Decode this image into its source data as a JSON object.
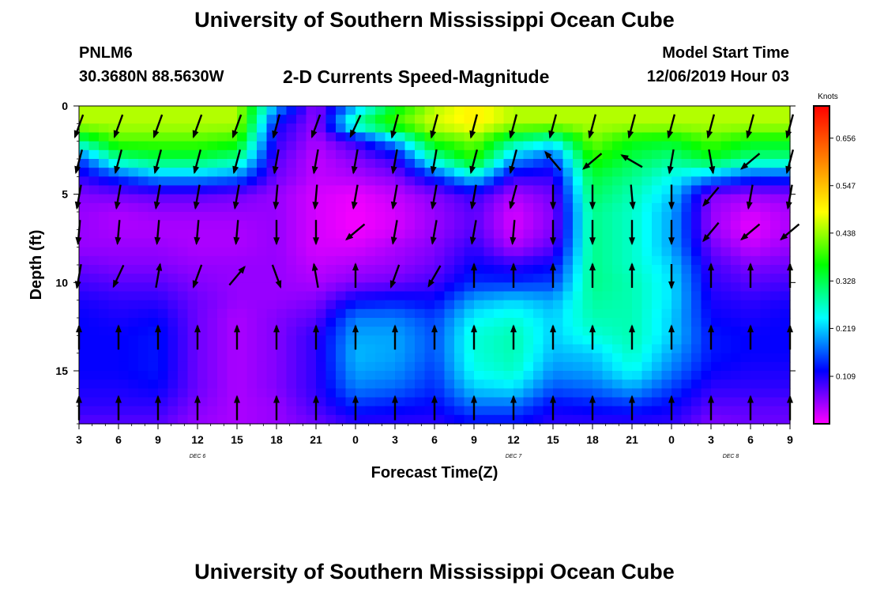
{
  "header": {
    "title": "University of Southern Mississippi Ocean Cube",
    "station_id": "PNLM6",
    "station_coords": "30.3680N 88.5630W",
    "subtitle": "2-D Currents Speed-Magnitude",
    "model_start_label": "Model Start Time",
    "model_start_value": "12/06/2019 Hour 03"
  },
  "footer": {
    "title": "University of Southern Mississippi Ocean Cube"
  },
  "chart_data": {
    "type": "heatmap",
    "xlabel": "Forecast Time(Z)",
    "ylabel": "Depth (ft)",
    "x_range": [
      0,
      54
    ],
    "y_range": [
      0,
      18
    ],
    "y_inverted": true,
    "x_ticks": [
      {
        "pos": 0,
        "label": "3"
      },
      {
        "pos": 3,
        "label": "6"
      },
      {
        "pos": 6,
        "label": "9"
      },
      {
        "pos": 9,
        "label": "12"
      },
      {
        "pos": 12,
        "label": "15"
      },
      {
        "pos": 15,
        "label": "18"
      },
      {
        "pos": 18,
        "label": "21"
      },
      {
        "pos": 21,
        "label": "0"
      },
      {
        "pos": 24,
        "label": "3"
      },
      {
        "pos": 27,
        "label": "6"
      },
      {
        "pos": 30,
        "label": "9"
      },
      {
        "pos": 33,
        "label": "12"
      },
      {
        "pos": 36,
        "label": "15"
      },
      {
        "pos": 39,
        "label": "18"
      },
      {
        "pos": 42,
        "label": "21"
      },
      {
        "pos": 45,
        "label": "0"
      },
      {
        "pos": 48,
        "label": "3"
      },
      {
        "pos": 51,
        "label": "6"
      },
      {
        "pos": 54,
        "label": "9"
      }
    ],
    "day_labels": [
      {
        "pos": 9,
        "label": "DEC 6"
      },
      {
        "pos": 33,
        "label": "DEC 7"
      },
      {
        "pos": 49.5,
        "label": "DEC 8"
      }
    ],
    "y_ticks": [
      {
        "pos": 0,
        "label": "0"
      },
      {
        "pos": 5,
        "label": "5"
      },
      {
        "pos": 10,
        "label": "10"
      },
      {
        "pos": 15,
        "label": "15"
      }
    ],
    "colorbar": {
      "title": "Knots",
      "range": [
        0,
        0.73
      ],
      "tick_values": [
        0.109,
        0.219,
        0.328,
        0.438,
        0.547,
        0.656
      ],
      "tick_labels": [
        "0.109",
        "0.219",
        "0.328",
        "0.438",
        "0.547",
        "0.656"
      ],
      "colors": [
        "#ff00ff",
        "#8000ff",
        "#0000ff",
        "#0080ff",
        "#00ffff",
        "#00ff80",
        "#00ff00",
        "#80ff00",
        "#ffff00",
        "#ffc000",
        "#ff8000",
        "#ff4000",
        "#ff0000"
      ]
    },
    "heatmap": {
      "x": [
        0,
        3,
        6,
        9,
        12,
        15,
        18,
        21,
        24,
        27,
        30,
        33,
        36,
        39,
        42,
        45,
        48,
        51,
        54
      ],
      "y": [
        0,
        1,
        2,
        3,
        4,
        5,
        6,
        7,
        8,
        9,
        10,
        11,
        12,
        13,
        14,
        15,
        16,
        17,
        18
      ],
      "values": [
        [
          0.45,
          0.45,
          0.45,
          0.45,
          0.45,
          0.2,
          0.05,
          0.2,
          0.35,
          0.45,
          0.5,
          0.45,
          0.45,
          0.45,
          0.45,
          0.45,
          0.45,
          0.45,
          0.45
        ],
        [
          0.45,
          0.45,
          0.45,
          0.45,
          0.45,
          0.12,
          0.05,
          0.3,
          0.4,
          0.47,
          0.5,
          0.45,
          0.45,
          0.45,
          0.45,
          0.45,
          0.45,
          0.45,
          0.45
        ],
        [
          0.3,
          0.4,
          0.4,
          0.4,
          0.38,
          0.1,
          0.04,
          0.1,
          0.2,
          0.38,
          0.42,
          0.3,
          0.25,
          0.42,
          0.36,
          0.35,
          0.4,
          0.36,
          0.36
        ],
        [
          0.15,
          0.3,
          0.33,
          0.33,
          0.3,
          0.08,
          0.03,
          0.06,
          0.1,
          0.28,
          0.38,
          0.2,
          0.15,
          0.38,
          0.33,
          0.3,
          0.35,
          0.3,
          0.3
        ],
        [
          0.1,
          0.15,
          0.2,
          0.2,
          0.18,
          0.07,
          0.03,
          0.04,
          0.06,
          0.14,
          0.24,
          0.1,
          0.1,
          0.34,
          0.3,
          0.25,
          0.2,
          0.15,
          0.15
        ],
        [
          0.06,
          0.07,
          0.08,
          0.08,
          0.07,
          0.05,
          0.02,
          0.01,
          0.03,
          0.06,
          0.1,
          0.04,
          0.07,
          0.32,
          0.28,
          0.22,
          0.06,
          0.05,
          0.06
        ],
        [
          0.05,
          0.04,
          0.05,
          0.05,
          0.05,
          0.05,
          0.02,
          0.005,
          0.02,
          0.05,
          0.08,
          0.02,
          0.06,
          0.3,
          0.27,
          0.2,
          0.05,
          0.02,
          0.04
        ],
        [
          0.05,
          0.04,
          0.04,
          0.04,
          0.04,
          0.05,
          0.02,
          0.005,
          0.02,
          0.05,
          0.08,
          0.02,
          0.06,
          0.3,
          0.27,
          0.2,
          0.05,
          0.01,
          0.04
        ],
        [
          0.05,
          0.05,
          0.05,
          0.04,
          0.04,
          0.05,
          0.02,
          0.02,
          0.04,
          0.06,
          0.1,
          0.04,
          0.08,
          0.3,
          0.27,
          0.2,
          0.07,
          0.03,
          0.05
        ],
        [
          0.07,
          0.06,
          0.06,
          0.05,
          0.05,
          0.05,
          0.03,
          0.04,
          0.05,
          0.07,
          0.12,
          0.1,
          0.12,
          0.3,
          0.27,
          0.22,
          0.09,
          0.06,
          0.07
        ],
        [
          0.09,
          0.08,
          0.08,
          0.06,
          0.05,
          0.05,
          0.04,
          0.06,
          0.07,
          0.09,
          0.14,
          0.14,
          0.15,
          0.3,
          0.28,
          0.23,
          0.1,
          0.08,
          0.09
        ],
        [
          0.11,
          0.1,
          0.1,
          0.07,
          0.05,
          0.05,
          0.06,
          0.12,
          0.13,
          0.12,
          0.2,
          0.22,
          0.2,
          0.29,
          0.28,
          0.23,
          0.11,
          0.1,
          0.11
        ],
        [
          0.12,
          0.11,
          0.12,
          0.07,
          0.04,
          0.06,
          0.08,
          0.18,
          0.18,
          0.15,
          0.24,
          0.26,
          0.22,
          0.28,
          0.28,
          0.22,
          0.12,
          0.11,
          0.12
        ],
        [
          0.12,
          0.12,
          0.13,
          0.07,
          0.04,
          0.06,
          0.1,
          0.2,
          0.2,
          0.16,
          0.26,
          0.28,
          0.22,
          0.26,
          0.28,
          0.22,
          0.13,
          0.12,
          0.12
        ],
        [
          0.12,
          0.12,
          0.13,
          0.07,
          0.04,
          0.06,
          0.1,
          0.21,
          0.2,
          0.16,
          0.26,
          0.28,
          0.21,
          0.22,
          0.27,
          0.2,
          0.13,
          0.12,
          0.12
        ],
        [
          0.12,
          0.12,
          0.13,
          0.07,
          0.04,
          0.06,
          0.1,
          0.2,
          0.19,
          0.15,
          0.25,
          0.27,
          0.19,
          0.2,
          0.25,
          0.18,
          0.12,
          0.11,
          0.11
        ],
        [
          0.11,
          0.11,
          0.12,
          0.07,
          0.04,
          0.06,
          0.1,
          0.18,
          0.17,
          0.14,
          0.22,
          0.23,
          0.16,
          0.17,
          0.2,
          0.15,
          0.1,
          0.1,
          0.1
        ],
        [
          0.1,
          0.1,
          0.1,
          0.06,
          0.04,
          0.05,
          0.09,
          0.14,
          0.13,
          0.12,
          0.17,
          0.17,
          0.12,
          0.13,
          0.14,
          0.12,
          0.08,
          0.08,
          0.08
        ],
        [
          0.08,
          0.08,
          0.08,
          0.05,
          0.04,
          0.05,
          0.07,
          0.1,
          0.1,
          0.1,
          0.12,
          0.12,
          0.1,
          0.1,
          0.1,
          0.1,
          0.06,
          0.07,
          0.07
        ]
      ]
    },
    "vectors": {
      "x": [
        0,
        3,
        6,
        9,
        12,
        15,
        18,
        21,
        24,
        27,
        30,
        33,
        36,
        39,
        42,
        45,
        48,
        51,
        54
      ],
      "depths": [
        0.5,
        2.5,
        4.5,
        6.5,
        9,
        12.5,
        16.5
      ],
      "directions_deg": [
        [
          200,
          200,
          200,
          200,
          200,
          195,
          200,
          205,
          195,
          195,
          195,
          195,
          195,
          195,
          195,
          195,
          195,
          195,
          195
        ],
        [
          195,
          195,
          195,
          195,
          195,
          190,
          190,
          190,
          190,
          190,
          195,
          195,
          320,
          230,
          300,
          190,
          170,
          230,
          195
        ],
        [
          190,
          190,
          190,
          190,
          190,
          185,
          185,
          190,
          190,
          190,
          190,
          195,
          180,
          180,
          175,
          180,
          220,
          190,
          190
        ],
        [
          185,
          185,
          185,
          185,
          185,
          180,
          180,
          230,
          190,
          190,
          190,
          185,
          180,
          180,
          180,
          180,
          220,
          230,
          230
        ],
        [
          190,
          205,
          10,
          200,
          40,
          160,
          350,
          0,
          200,
          210,
          0,
          0,
          0,
          0,
          0,
          180,
          0,
          0,
          0
        ],
        [
          0,
          0,
          0,
          0,
          0,
          0,
          0,
          0,
          0,
          0,
          0,
          0,
          0,
          0,
          0,
          0,
          0,
          0,
          0
        ],
        [
          0,
          0,
          0,
          0,
          0,
          0,
          0,
          0,
          0,
          0,
          0,
          0,
          0,
          0,
          0,
          0,
          0,
          0,
          0
        ]
      ]
    }
  }
}
